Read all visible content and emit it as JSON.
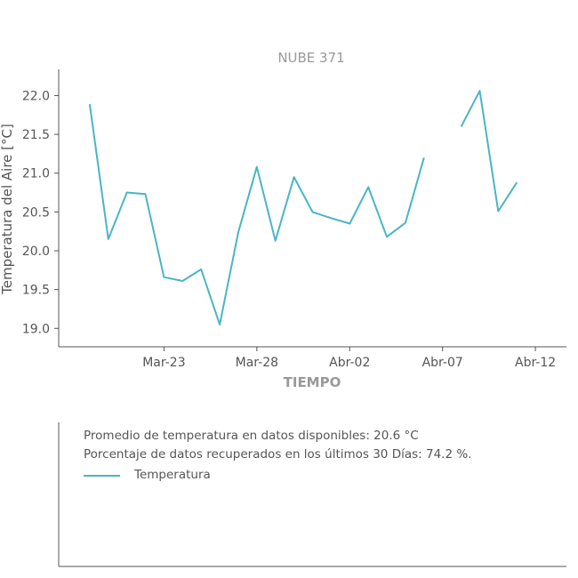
{
  "chart_data": {
    "type": "line",
    "title": "NUBE 371",
    "xlabel": "TIEMPO",
    "ylabel": "Temperatura del Aire [°C]",
    "x_ticks": [
      "Mar-23",
      "Mar-28",
      "Abr-02",
      "Abr-07",
      "Abr-12"
    ],
    "y_ticks": [
      "19.0",
      "19.5",
      "20.0",
      "20.5",
      "21.0",
      "21.5",
      "22.0"
    ],
    "ylim": [
      18.9,
      22.2
    ],
    "xlim": [
      "2023-03-18",
      "2023-04-13"
    ],
    "grid": false,
    "series": [
      {
        "name": "Temperatura",
        "color": "#4ab5c4",
        "points": [
          {
            "x": "2023-03-19",
            "y": 21.89
          },
          {
            "x": "2023-03-20",
            "y": 20.15
          },
          {
            "x": "2023-03-21",
            "y": 20.75
          },
          {
            "x": "2023-03-22",
            "y": 20.73
          },
          {
            "x": "2023-03-23",
            "y": 19.66
          },
          {
            "x": "2023-03-24",
            "y": 19.61
          },
          {
            "x": "2023-03-25",
            "y": 19.76
          },
          {
            "x": "2023-03-26",
            "y": 19.05
          },
          {
            "x": "2023-03-27",
            "y": 20.24
          },
          {
            "x": "2023-03-28",
            "y": 21.08
          },
          {
            "x": "2023-03-29",
            "y": 20.13
          },
          {
            "x": "2023-03-30",
            "y": 20.95
          },
          {
            "x": "2023-03-31",
            "y": 20.5
          },
          {
            "x": "2023-04-01",
            "y": 20.42
          },
          {
            "x": "2023-04-02",
            "y": 20.35
          },
          {
            "x": "2023-04-03",
            "y": 20.82
          },
          {
            "x": "2023-04-04",
            "y": 20.18
          },
          {
            "x": "2023-04-05",
            "y": 20.36
          },
          {
            "x": "2023-04-06",
            "y": 21.2
          },
          {
            "x": "2023-04-07",
            "y": null
          },
          {
            "x": "2023-04-08",
            "y": 21.6
          },
          {
            "x": "2023-04-09",
            "y": 22.06
          },
          {
            "x": "2023-04-10",
            "y": 20.51
          },
          {
            "x": "2023-04-11",
            "y": 20.88
          }
        ]
      }
    ]
  },
  "info_panel": {
    "average_text": "Promedio de temperatura en datos disponibles: 20.6 °C",
    "recovered_text": "Porcentaje de datos recuperados en los últimos 30 Días: 74.2 %.",
    "legend_label": "Temperatura"
  },
  "colors": {
    "line": "#4ab5c4",
    "axis": "#555555",
    "muted_text": "#999999"
  }
}
